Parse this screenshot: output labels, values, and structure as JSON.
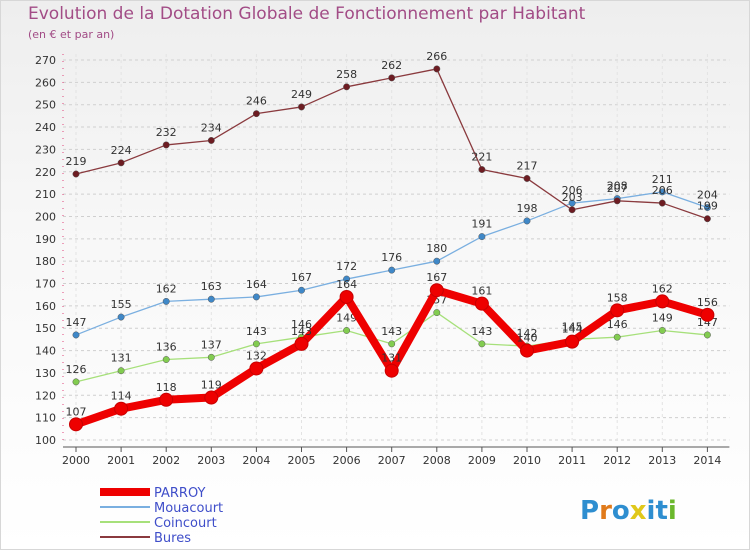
{
  "header": {
    "title": "Evolution de la Dotation Globale de Fonctionnement par Habitant",
    "subtitle": "(en € et par an)"
  },
  "logo": {
    "text": "Proxiti"
  },
  "chart_data": {
    "type": "line",
    "title": "Evolution de la Dotation Globale de Fonctionnement par Habitant",
    "subtitle": "(en € et par an)",
    "xlabel": "",
    "ylabel": "",
    "x": [
      "2000",
      "2001",
      "2002",
      "2003",
      "2004",
      "2005",
      "2006",
      "2007",
      "2008",
      "2009",
      "2010",
      "2011",
      "2012",
      "2013",
      "2014"
    ],
    "ylim": [
      100,
      270
    ],
    "yticks": [
      100,
      110,
      120,
      130,
      140,
      150,
      160,
      170,
      180,
      190,
      200,
      210,
      220,
      230,
      240,
      250,
      260,
      270
    ],
    "grid": "horizontal dashed",
    "legend_position": "bottom-left",
    "series": [
      {
        "name": "PARROY",
        "color": "#ee0000",
        "emphasis": true,
        "values": [
          107,
          114,
          118,
          119,
          132,
          143,
          164,
          131,
          167,
          161,
          140,
          144,
          158,
          162,
          156
        ],
        "value_labels": [
          "107",
          "114",
          "118",
          "119",
          "132",
          "143",
          "164",
          "131",
          "167",
          "161",
          "140",
          "144",
          "158",
          "162",
          "156"
        ]
      },
      {
        "name": "Mouacourt",
        "color": "#7aafe0",
        "marker": "#3f88c8",
        "values": [
          147,
          155,
          162,
          163,
          164,
          167,
          172,
          176,
          180,
          191,
          198,
          206,
          208,
          211,
          204
        ],
        "value_labels": [
          "147",
          "155",
          "162",
          "163",
          "164",
          "167",
          "172",
          "176",
          "180",
          "191",
          "198",
          "206",
          "208",
          "211",
          "204"
        ]
      },
      {
        "name": "Coincourt",
        "color": "#a6e07a",
        "marker": "#82cc50",
        "values": [
          126,
          131,
          136,
          137,
          143,
          146,
          149,
          143,
          157,
          143,
          142,
          145,
          146,
          149,
          147
        ],
        "value_labels": [
          "126",
          "131",
          "136",
          "137",
          "143",
          "146",
          "149",
          "143",
          "157",
          "143",
          "142",
          "145",
          "146",
          "149",
          "147"
        ]
      },
      {
        "name": "Bures",
        "color": "#8a3a3e",
        "marker": "#6d1c22",
        "values": [
          219,
          224,
          232,
          234,
          246,
          249,
          258,
          262,
          266,
          221,
          217,
          203,
          207,
          206,
          199
        ],
        "value_labels": [
          "219",
          "224",
          "232",
          "234",
          "246",
          "249",
          "258",
          "262",
          "266",
          "221",
          "217",
          "203",
          "207",
          "206",
          "199"
        ]
      }
    ]
  }
}
